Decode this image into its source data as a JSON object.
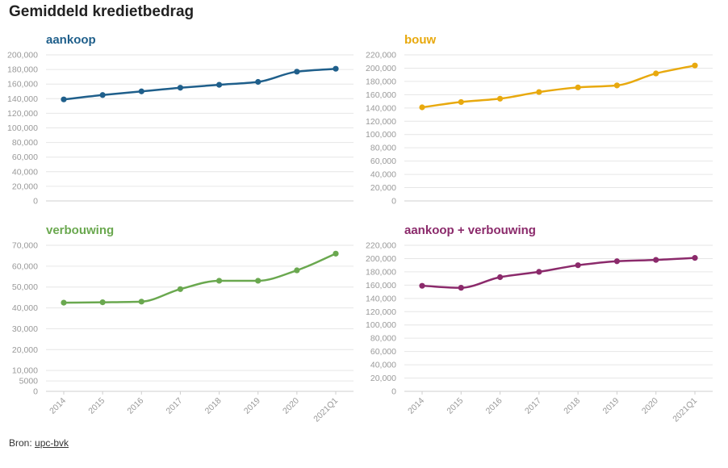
{
  "page": {
    "title": "Gemiddeld kredietbedrag",
    "source_prefix": "Bron: ",
    "source_link": "upc-bvk"
  },
  "chart_data": [
    {
      "type": "line",
      "title": "aankoop",
      "color": "#1f5f8b",
      "categories": [
        "2014",
        "2015",
        "2016",
        "2017",
        "2018",
        "2019",
        "2020",
        "2021Q1"
      ],
      "values": [
        139000,
        145000,
        150000,
        155000,
        159000,
        163000,
        177000,
        181000
      ],
      "ylim": [
        0,
        200000
      ],
      "yticks": [
        0,
        20000,
        40000,
        60000,
        80000,
        100000,
        120000,
        140000,
        160000,
        180000,
        200000
      ],
      "ytick_labels": [
        "0",
        "20,000",
        "40,000",
        "60,000",
        "80,000",
        "100,000",
        "120,000",
        "140,000",
        "160,000",
        "180,000",
        "200,000"
      ],
      "show_x_labels": false,
      "grid": true
    },
    {
      "type": "line",
      "title": "bouw",
      "color": "#e8a90e",
      "categories": [
        "2014",
        "2015",
        "2016",
        "2017",
        "2018",
        "2019",
        "2020",
        "2021Q1"
      ],
      "values": [
        141000,
        149000,
        154000,
        164000,
        171000,
        174000,
        192000,
        204000
      ],
      "ylim": [
        0,
        220000
      ],
      "yticks": [
        0,
        20000,
        40000,
        60000,
        80000,
        100000,
        120000,
        140000,
        160000,
        180000,
        200000,
        220000
      ],
      "ytick_labels": [
        "0",
        "20,000",
        "40,000",
        "60,000",
        "80,000",
        "100,000",
        "120,000",
        "140,000",
        "160,000",
        "180,000",
        "200,000",
        "220,000"
      ],
      "show_x_labels": false,
      "grid": true
    },
    {
      "type": "line",
      "title": "verbouwing",
      "color": "#6aa84f",
      "categories": [
        "2014",
        "2015",
        "2016",
        "2017",
        "2018",
        "2019",
        "2020",
        "2021Q1"
      ],
      "values": [
        42500,
        42700,
        43000,
        49000,
        53000,
        53000,
        58000,
        66000
      ],
      "ylim": [
        0,
        70000
      ],
      "yticks": [
        0,
        5000,
        10000,
        20000,
        30000,
        40000,
        50000,
        60000,
        70000
      ],
      "ytick_labels": [
        "0",
        "5000",
        "10,000",
        "20,000",
        "30,000",
        "40,000",
        "50,000",
        "60,000",
        "70,000"
      ],
      "show_x_labels": true,
      "grid": true
    },
    {
      "type": "line",
      "title": "aankoop + verbouwing",
      "color": "#8b2a6b",
      "categories": [
        "2014",
        "2015",
        "2016",
        "2017",
        "2018",
        "2019",
        "2020",
        "2021Q1"
      ],
      "values": [
        159000,
        156000,
        172000,
        180000,
        190000,
        196000,
        198000,
        201000
      ],
      "ylim": [
        0,
        220000
      ],
      "yticks": [
        0,
        20000,
        40000,
        60000,
        80000,
        100000,
        120000,
        140000,
        160000,
        180000,
        200000,
        220000
      ],
      "ytick_labels": [
        "0",
        "20,000",
        "40,000",
        "60,000",
        "80,000",
        "100,000",
        "120,000",
        "140,000",
        "160,000",
        "180,000",
        "200,000",
        "220,000"
      ],
      "show_x_labels": true,
      "grid": true
    }
  ]
}
